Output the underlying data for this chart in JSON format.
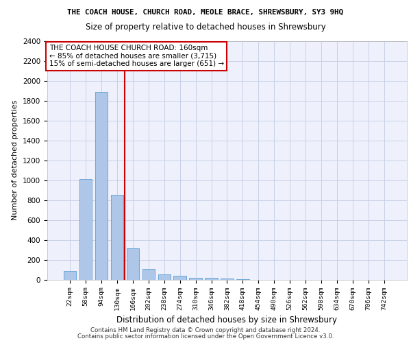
{
  "title": "THE COACH HOUSE, CHURCH ROAD, MEOLE BRACE, SHREWSBURY, SY3 9HQ",
  "subtitle": "Size of property relative to detached houses in Shrewsbury",
  "xlabel": "Distribution of detached houses by size in Shrewsbury",
  "ylabel": "Number of detached properties",
  "categories": [
    "22sqm",
    "58sqm",
    "94sqm",
    "130sqm",
    "166sqm",
    "202sqm",
    "238sqm",
    "274sqm",
    "310sqm",
    "346sqm",
    "382sqm",
    "418sqm",
    "454sqm",
    "490sqm",
    "526sqm",
    "562sqm",
    "598sqm",
    "634sqm",
    "670sqm",
    "706sqm",
    "742sqm"
  ],
  "values": [
    85,
    1010,
    1890,
    855,
    315,
    110,
    50,
    40,
    20,
    15,
    10,
    5,
    0,
    0,
    0,
    0,
    0,
    0,
    0,
    0,
    0
  ],
  "bar_color": "#aec6e8",
  "bar_edge_color": "#5a9fd4",
  "vline_color": "#cc0000",
  "vline_pos": 3.5,
  "annotation_text": "THE COACH HOUSE CHURCH ROAD: 160sqm\n← 85% of detached houses are smaller (3,715)\n15% of semi-detached houses are larger (651) →",
  "annotation_box_color": "#ffffff",
  "annotation_box_edge": "#cc0000",
  "ylim": [
    0,
    2400
  ],
  "yticks": [
    0,
    200,
    400,
    600,
    800,
    1000,
    1200,
    1400,
    1600,
    1800,
    2000,
    2200,
    2400
  ],
  "footer1": "Contains HM Land Registry data © Crown copyright and database right 2024.",
  "footer2": "Contains public sector information licensed under the Open Government Licence v3.0.",
  "bg_color": "#eef1fb",
  "grid_color": "#c8d0e8",
  "title_fontsize": 7.8,
  "subtitle_fontsize": 8.5,
  "ylabel_fontsize": 8.0,
  "xlabel_fontsize": 8.5,
  "tick_fontsize": 7.5,
  "xtick_fontsize": 6.8,
  "annot_fontsize": 7.5,
  "footer_fontsize": 6.2
}
